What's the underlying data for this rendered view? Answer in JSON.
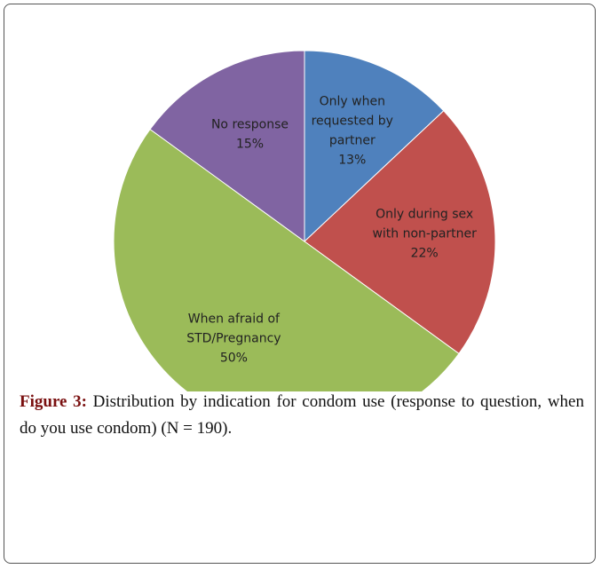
{
  "chart_data": {
    "type": "pie",
    "categories": [
      [
        "Only when",
        "requested by",
        "partner"
      ],
      [
        "Only during sex",
        "with non-partner"
      ],
      [
        "When afraid of",
        "STD/Pregnancy"
      ],
      [
        "No response"
      ]
    ],
    "values": [
      13,
      22,
      50,
      15
    ],
    "value_labels": [
      "13%",
      "22%",
      "50%",
      "15%"
    ],
    "colors": [
      "#4f81bd",
      "#c0504d",
      "#9bbb59",
      "#8064a2"
    ]
  },
  "caption": {
    "label": "Figure 3:",
    "text": " Distribution by indication for condom use (response to question, when do you use condom) (N = 190)."
  }
}
